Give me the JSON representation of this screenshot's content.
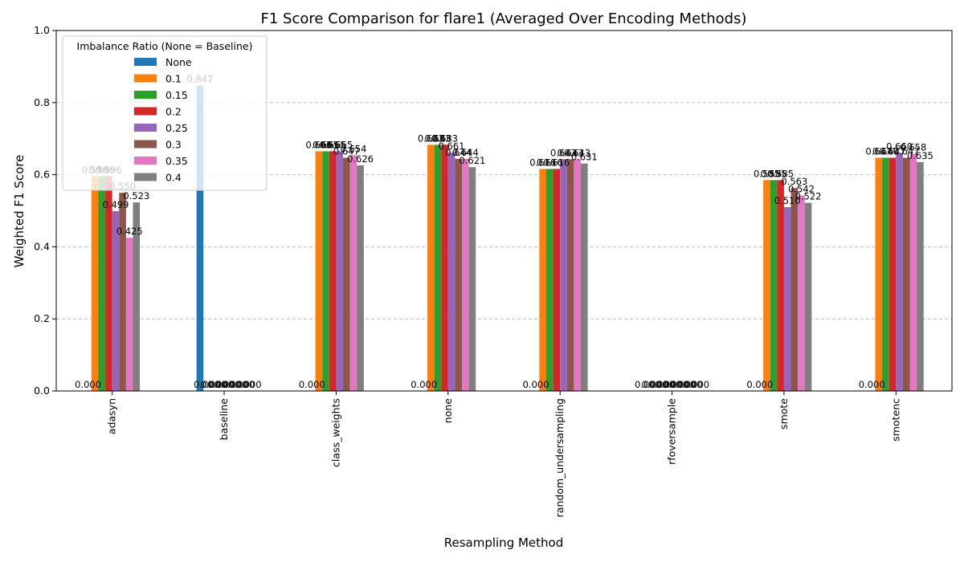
{
  "chart_data": {
    "type": "bar",
    "title": "F1 Score Comparison for flare1 (Averaged Over Encoding Methods)",
    "xlabel": "Resampling Method",
    "ylabel": "Weighted F1 Score",
    "ylim": [
      0,
      1.0
    ],
    "yticks": [
      "0.0",
      "0.2",
      "0.4",
      "0.6",
      "0.8",
      "1.0"
    ],
    "grid": "y-dashed",
    "legend": {
      "title": "Imbalance Ratio (None = Baseline)",
      "placement": "top-left"
    },
    "categories": [
      "adasyn",
      "baseline",
      "class_weights",
      "none",
      "random_undersampling",
      "rfoversample",
      "smote",
      "smotenc"
    ],
    "series": [
      {
        "name": "None",
        "color": "#1f77b4",
        "values": [
          0.0,
          0.847,
          0.0,
          0.0,
          0.0,
          0.0,
          0.0,
          0.0
        ]
      },
      {
        "name": "0.1",
        "color": "#ff7f0e",
        "values": [
          0.596,
          0.0,
          0.665,
          0.683,
          0.616,
          0.0,
          0.585,
          0.647
        ]
      },
      {
        "name": "0.15",
        "color": "#2ca02c",
        "values": [
          0.596,
          0.0,
          0.665,
          0.683,
          0.616,
          0.0,
          0.585,
          0.647
        ]
      },
      {
        "name": "0.2",
        "color": "#d62728",
        "values": [
          0.596,
          0.0,
          0.665,
          0.683,
          0.616,
          0.0,
          0.585,
          0.647
        ]
      },
      {
        "name": "0.25",
        "color": "#9467bd",
        "values": [
          0.499,
          0.0,
          0.665,
          0.661,
          0.643,
          0.0,
          0.51,
          0.66
        ]
      },
      {
        "name": "0.3",
        "color": "#8c564b",
        "values": [
          0.55,
          0.0,
          0.647,
          0.644,
          0.643,
          0.0,
          0.563,
          0.647
        ]
      },
      {
        "name": "0.35",
        "color": "#e377c2",
        "values": [
          0.425,
          0.0,
          0.654,
          0.644,
          0.643,
          0.0,
          0.542,
          0.658
        ]
      },
      {
        "name": "0.4",
        "color": "#7f7f7f",
        "values": [
          0.523,
          0.0,
          0.626,
          0.621,
          0.631,
          0.0,
          0.522,
          0.635
        ]
      }
    ]
  }
}
